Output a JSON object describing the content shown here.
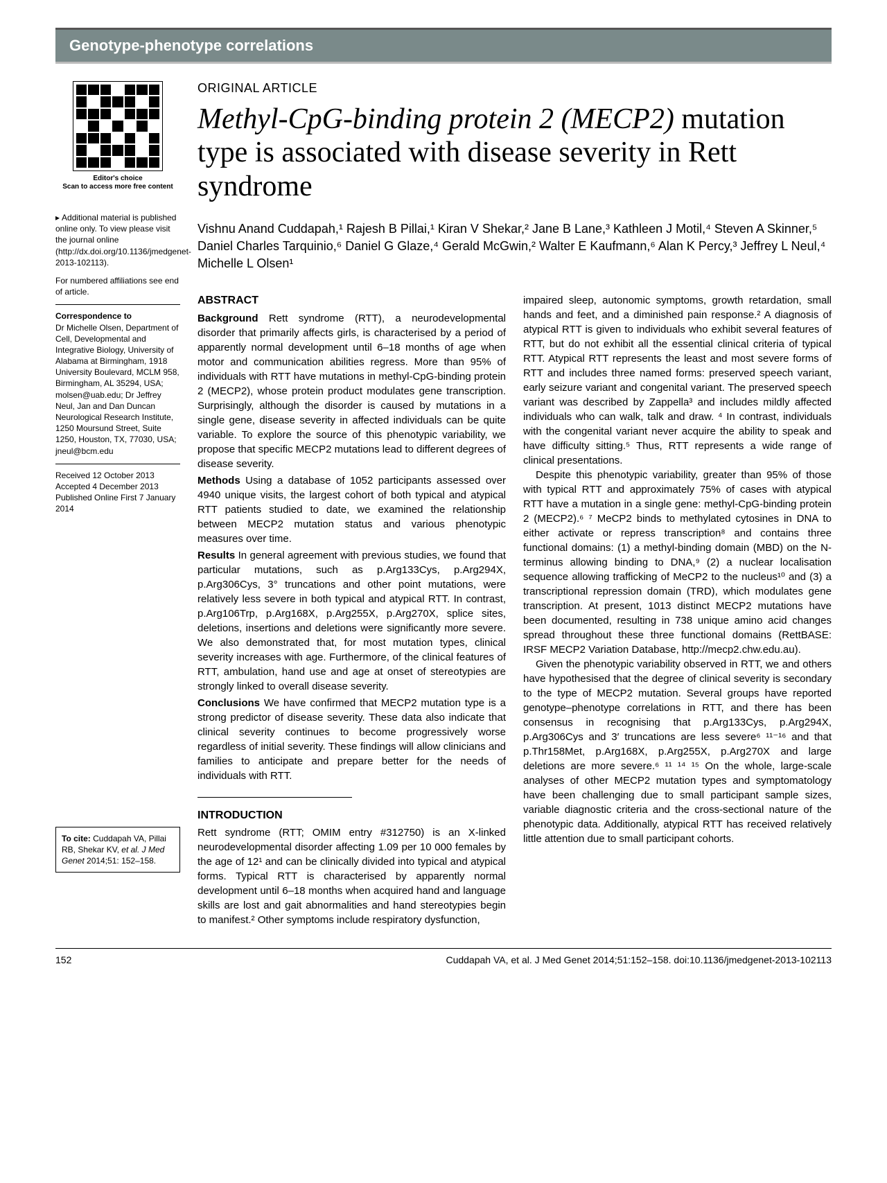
{
  "header": "Genotype-phenotype correlations",
  "qr_caption": "Editor's choice\nScan to access more free content",
  "article_type": "ORIGINAL ARTICLE",
  "title_pre": "Methyl-CpG-binding protein 2 ",
  "title_gene": "(MECP2)",
  "title_post": " mutation type is associated with disease severity in Rett syndrome",
  "authors": "Vishnu Anand Cuddapah,¹ Rajesh B Pillai,¹ Kiran V Shekar,² Jane B Lane,³ Kathleen J Motil,⁴ Steven A Skinner,⁵ Daniel Charles Tarquinio,⁶ Daniel G Glaze,⁴ Gerald McGwin,² Walter E Kaufmann,⁶ Alan K Percy,³ Jeffrey L Neul,⁴ Michelle L Olsen¹",
  "side_supp": "Additional material is published online only. To view please visit the journal online (http://dx.doi.org/10.1136/jmedgenet-2013-102113).",
  "side_affil": "For numbered affiliations see end of article.",
  "side_corr_hd": "Correspondence to",
  "side_corr": "Dr Michelle Olsen, Department of Cell, Developmental and Integrative Biology, University of Alabama at Birmingham, 1918 University Boulevard, MCLM 958, Birmingham, AL 35294, USA; molsen@uab.edu; Dr Jeffrey Neul, Jan and Dan Duncan Neurological Research Institute, 1250 Moursund Street, Suite 1250, Houston, TX, 77030, USA; jneul@bcm.edu",
  "side_dates": "Received 12 October 2013\nAccepted 4 December 2013\nPublished Online First 7 January 2014",
  "cite_lbl": "To cite: ",
  "cite_txt": "Cuddapah VA, Pillai RB, Shekar KV, ",
  "cite_etal": "et al. J Med Genet ",
  "cite_ref": "2014;51: 152–158.",
  "abs_hd": "ABSTRACT",
  "abs_bg_lbl": "Background",
  "abs_bg": "Rett syndrome (RTT), a neurodevelopmental disorder that primarily affects girls, is characterised by a period of apparently normal development until 6–18 months of age when motor and communication abilities regress. More than 95% of individuals with RTT have mutations in methyl-CpG-binding protein 2 (MECP2), whose protein product modulates gene transcription. Surprisingly, although the disorder is caused by mutations in a single gene, disease severity in affected individuals can be quite variable. To explore the source of this phenotypic variability, we propose that specific MECP2 mutations lead to different degrees of disease severity.",
  "abs_me_lbl": "Methods",
  "abs_me": "Using a database of 1052 participants assessed over 4940 unique visits, the largest cohort of both typical and atypical RTT patients studied to date, we examined the relationship between MECP2 mutation status and various phenotypic measures over time.",
  "abs_re_lbl": "Results",
  "abs_re": "In general agreement with previous studies, we found that particular mutations, such as p.Arg133Cys, p.Arg294X, p.Arg306Cys, 3° truncations and other point mutations, were relatively less severe in both typical and atypical RTT. In contrast, p.Arg106Trp, p.Arg168X, p.Arg255X, p.Arg270X, splice sites, deletions, insertions and deletions were significantly more severe. We also demonstrated that, for most mutation types, clinical severity increases with age. Furthermore, of the clinical features of RTT, ambulation, hand use and age at onset of stereotypies are strongly linked to overall disease severity.",
  "abs_co_lbl": "Conclusions",
  "abs_co": "We have confirmed that MECP2 mutation type is a strong predictor of disease severity. These data also indicate that clinical severity continues to become progressively worse regardless of initial severity. These findings will allow clinicians and families to anticipate and prepare better for the needs of individuals with RTT.",
  "intro_hd": "INTRODUCTION",
  "intro_p1": "Rett syndrome (RTT; OMIM entry #312750) is an X-linked neurodevelopmental disorder affecting 1.09 per 10 000 females by the age of 12¹ and can be clinically divided into typical and atypical forms. Typical RTT is characterised by apparently normal development until 6–18 months when acquired hand and language skills are lost and gait abnormalities and hand stereotypies begin to manifest.² Other symptoms include respiratory dysfunction,",
  "body_p1": "impaired sleep, autonomic symptoms, growth retardation, small hands and feet, and a diminished pain response.² A diagnosis of atypical RTT is given to individuals who exhibit several features of RTT, but do not exhibit all the essential clinical criteria of typical RTT. Atypical RTT represents the least and most severe forms of RTT and includes three named forms: preserved speech variant, early seizure variant and congenital variant. The preserved speech variant was described by Zappella³ and includes mildly affected individuals who can walk, talk and draw. ⁴ In contrast, individuals with the congenital variant never acquire the ability to speak and have difficulty sitting.⁵ Thus, RTT represents a wide range of clinical presentations.",
  "body_p2": "Despite this phenotypic variability, greater than 95% of those with typical RTT and approximately 75% of cases with atypical RTT have a mutation in a single gene: methyl-CpG-binding protein 2 (MECP2).⁶ ⁷ MeCP2 binds to methylated cytosines in DNA to either activate or repress transcription⁸ and contains three functional domains: (1) a methyl-binding domain (MBD) on the N-terminus allowing binding to DNA,⁹ (2) a nuclear localisation sequence allowing trafficking of MeCP2 to the nucleus¹⁰ and (3) a transcriptional repression domain (TRD), which modulates gene transcription. At present, 1013 distinct MECP2 mutations have been documented, resulting in 738 unique amino acid changes spread throughout these three functional domains (RettBASE: IRSF MECP2 Variation Database, http://mecp2.chw.edu.au).",
  "body_p3": "Given the phenotypic variability observed in RTT, we and others have hypothesised that the degree of clinical severity is secondary to the type of MECP2 mutation. Several groups have reported genotype–phenotype correlations in RTT, and there has been consensus in recognising that p.Arg133Cys, p.Arg294X, p.Arg306Cys and 3′ truncations are less severe⁶ ¹¹⁻¹⁶ and that p.Thr158Met, p.Arg168X, p.Arg255X, p.Arg270X and large deletions are more severe.⁶ ¹¹ ¹⁴ ¹⁵ On the whole, large-scale analyses of other MECP2 mutation types and symptomatology have been challenging due to small participant sample sizes, variable diagnostic criteria and the cross-sectional nature of the phenotypic data. Additionally, atypical RTT has received relatively little attention due to small participant cohorts.",
  "foot_page": "152",
  "foot_cite": "Cuddapah VA, et al. J Med Genet 2014;51:152–158. doi:10.1136/jmedgenet-2013-102113"
}
